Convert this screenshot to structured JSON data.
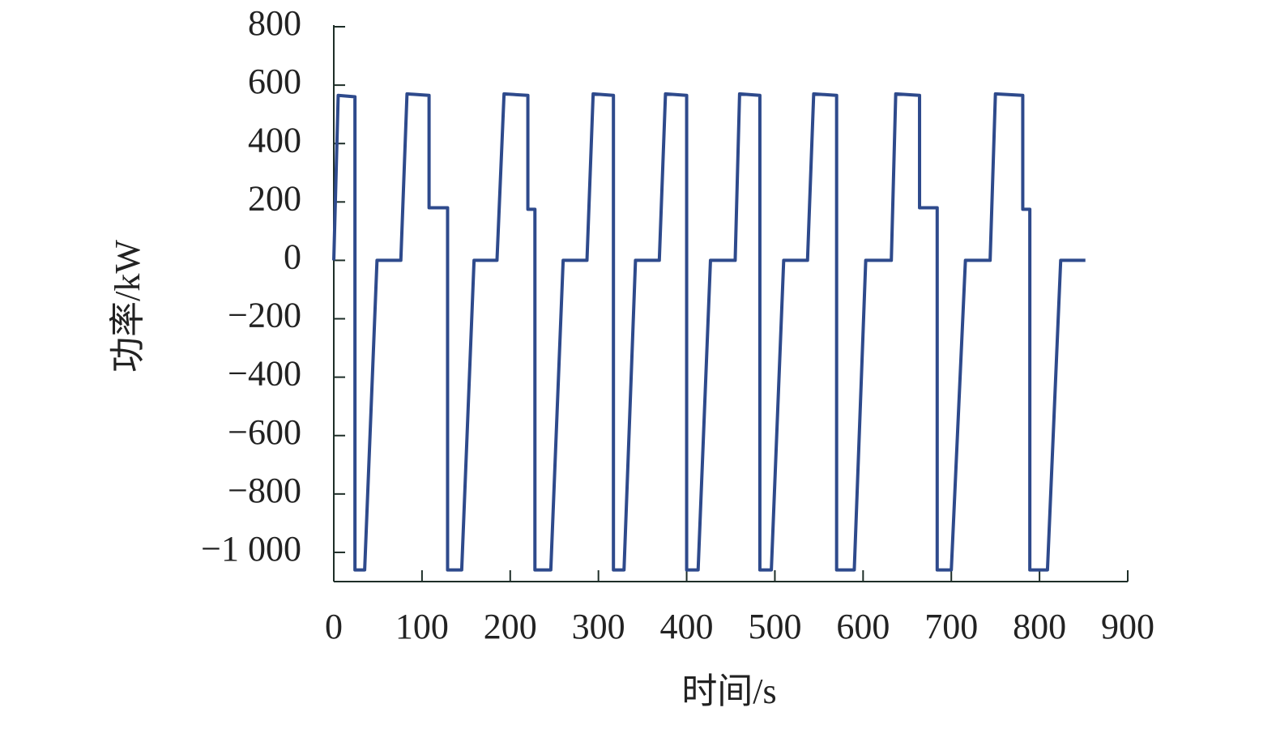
{
  "chart_data": {
    "type": "line",
    "x_label": "时间/s",
    "y_label": "功率/kW",
    "x": [
      0,
      5,
      24,
      24,
      35,
      49,
      76,
      83,
      108,
      108,
      129,
      129,
      145,
      159,
      185,
      193,
      220,
      220,
      228,
      228,
      246,
      260,
      287,
      294,
      317,
      317,
      329,
      342,
      369,
      376,
      400,
      400,
      413,
      427,
      455,
      460,
      483,
      483,
      496,
      510,
      537,
      544,
      570,
      570,
      590,
      603,
      632,
      637,
      664,
      664,
      684,
      684,
      700,
      716,
      744,
      750,
      781,
      781,
      789,
      789,
      809,
      824,
      852
    ],
    "series": [
      {
        "color": "#2e4a8c",
        "values": [
          0,
          565,
          560,
          -1060,
          -1060,
          0,
          0,
          570,
          565,
          180,
          180,
          -1060,
          -1060,
          0,
          0,
          570,
          565,
          175,
          175,
          -1060,
          -1060,
          0,
          0,
          570,
          565,
          -1060,
          -1060,
          0,
          0,
          570,
          565,
          -1060,
          -1060,
          0,
          0,
          570,
          565,
          -1060,
          -1060,
          0,
          0,
          570,
          565,
          -1060,
          -1060,
          0,
          0,
          570,
          565,
          180,
          180,
          -1060,
          -1060,
          0,
          0,
          570,
          565,
          175,
          175,
          -1060,
          -1060,
          0,
          0
        ]
      }
    ],
    "xlim": [
      0,
      900
    ],
    "xticks": [
      0,
      100,
      200,
      300,
      400,
      500,
      600,
      700,
      800,
      900
    ],
    "ylim": [
      -1100,
      800
    ],
    "yticks": [
      800,
      600,
      400,
      200,
      0,
      {
        "value": -200,
        "label": "−200"
      },
      {
        "value": -400,
        "label": "−400"
      },
      {
        "value": -600,
        "label": "−600"
      },
      {
        "value": -800,
        "label": "−800"
      },
      {
        "value": -1000,
        "label": "−1 000"
      }
    ]
  }
}
